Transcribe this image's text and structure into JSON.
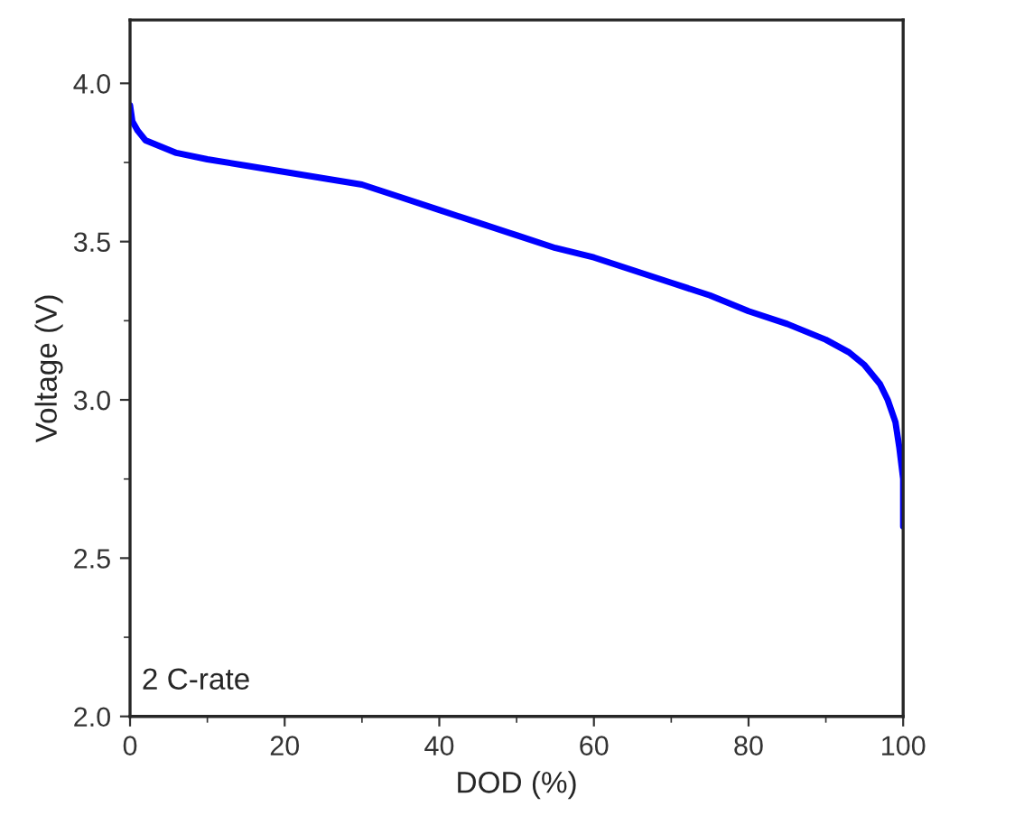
{
  "chart_data": {
    "type": "line",
    "xlabel": "DOD (%)",
    "ylabel": "Voltage (V)",
    "x": [
      0,
      0.3,
      1,
      2,
      4,
      6,
      10,
      15,
      20,
      25,
      30,
      35,
      40,
      45,
      50,
      55,
      60,
      65,
      70,
      75,
      80,
      85,
      88,
      90,
      93,
      95,
      96,
      97,
      98,
      99,
      99.5,
      100,
      100
    ],
    "series": [
      {
        "color": "#0000ff",
        "values": [
          3.93,
          3.88,
          3.85,
          3.82,
          3.8,
          3.78,
          3.76,
          3.74,
          3.72,
          3.7,
          3.68,
          3.64,
          3.6,
          3.56,
          3.52,
          3.48,
          3.45,
          3.41,
          3.37,
          3.33,
          3.28,
          3.24,
          3.21,
          3.19,
          3.15,
          3.11,
          3.08,
          3.05,
          3.0,
          2.93,
          2.85,
          2.75,
          2.6
        ]
      }
    ],
    "xlim": [
      0,
      100
    ],
    "ylim": [
      2.0,
      4.2
    ],
    "xticks": [
      0,
      20,
      40,
      60,
      80,
      100
    ],
    "yticks": [
      {
        "value": 2.0,
        "label": "2.0"
      },
      {
        "value": 2.5,
        "label": "2.5"
      },
      {
        "value": 3.0,
        "label": "3.0"
      },
      {
        "value": 3.5,
        "label": "3.5"
      },
      {
        "value": 4.0,
        "label": "4.0"
      }
    ],
    "annotations": [
      "2 C-rate"
    ],
    "line_style": "solid",
    "marker": "none",
    "grid": false,
    "legend": false
  }
}
